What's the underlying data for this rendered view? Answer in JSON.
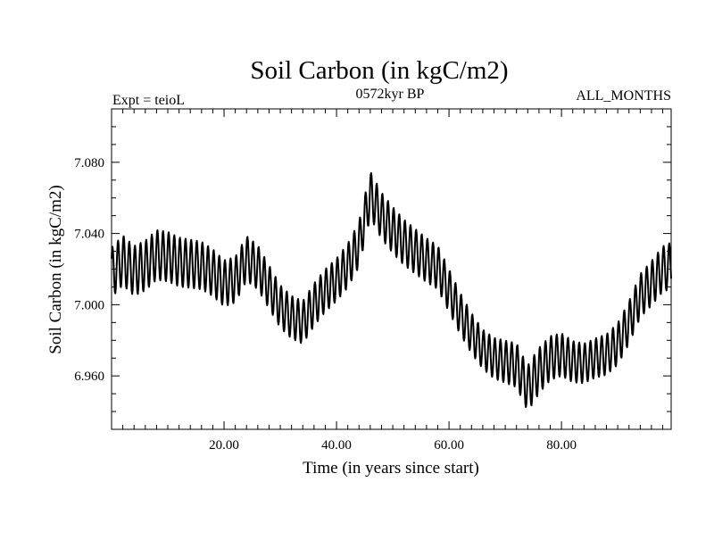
{
  "chart_data": {
    "type": "line",
    "title": "Soil Carbon (in kgC/m2)",
    "subtitle_left": "Expt = teioL",
    "subtitle_center": "0572kyr BP",
    "subtitle_right": "ALL_MONTHS",
    "xlabel": "Time (in years since start)",
    "ylabel": "Soil Carbon (in kgC/m2)",
    "xlim": [
      0,
      99.5
    ],
    "ylim": [
      6.93,
      7.11
    ],
    "xticks": [
      {
        "value": 20,
        "label": "20.00"
      },
      {
        "value": 40,
        "label": "40.00"
      },
      {
        "value": 60,
        "label": "60.00"
      },
      {
        "value": 80,
        "label": "80.00"
      }
    ],
    "yticks": [
      {
        "value": 6.96,
        "label": "6.960"
      },
      {
        "value": 7.0,
        "label": "7.000"
      },
      {
        "value": 7.04,
        "label": "7.040"
      },
      {
        "value": 7.08,
        "label": "7.080"
      }
    ],
    "grid": false,
    "line_color": "#000000",
    "seasonal_cycle_years": 1,
    "series": [
      {
        "annual_mean": {
          "x": [
            0,
            2,
            4,
            6,
            8,
            10,
            12,
            14,
            16,
            18,
            20,
            22,
            24,
            26,
            28,
            30,
            32,
            34,
            36,
            38,
            40,
            42,
            44,
            46,
            48,
            50,
            52,
            54,
            56,
            58,
            60,
            62,
            64,
            66,
            68,
            70,
            72,
            74,
            76,
            78,
            80,
            82,
            84,
            86,
            88,
            90,
            92,
            94,
            96,
            98,
            99.5
          ],
          "y": [
            7.018,
            7.025,
            7.019,
            7.022,
            7.028,
            7.027,
            7.024,
            7.023,
            7.022,
            7.018,
            7.012,
            7.014,
            7.026,
            7.021,
            7.01,
            6.999,
            6.993,
            6.99,
            7.0,
            7.008,
            7.014,
            7.022,
            7.034,
            7.062,
            7.05,
            7.042,
            7.035,
            7.03,
            7.025,
            7.021,
            7.008,
            6.995,
            6.984,
            6.975,
            6.97,
            6.968,
            6.966,
            6.953,
            6.963,
            6.97,
            6.972,
            6.968,
            6.967,
            6.97,
            6.972,
            6.978,
            6.99,
            7.005,
            7.012,
            7.02,
            7.022
          ]
        },
        "seasonal_amplitude": {
          "x": [
            0,
            10,
            20,
            30,
            40,
            46,
            50,
            60,
            66,
            75,
            85,
            99.5
          ],
          "y": [
            0.014,
            0.014,
            0.013,
            0.012,
            0.012,
            0.013,
            0.013,
            0.012,
            0.011,
            0.013,
            0.011,
            0.013
          ]
        }
      }
    ]
  }
}
